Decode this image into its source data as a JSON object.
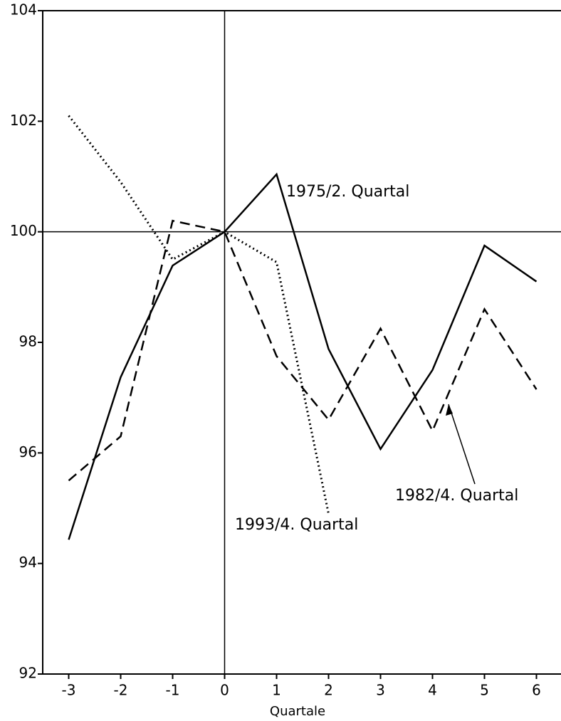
{
  "chart_data": {
    "type": "line",
    "x": [
      -3,
      -2,
      -1,
      0,
      1,
      2,
      3,
      4,
      5,
      6
    ],
    "series": [
      {
        "name": "1975/2. Quartal",
        "color": "#000000",
        "line_style": "solid",
        "values": [
          94.43,
          97.37,
          99.39,
          100,
          101.04,
          97.88,
          96.07,
          97.5,
          99.75,
          99.1
        ]
      },
      {
        "name": "1982/4. Quartal",
        "color": "#000000",
        "line_style": "dashed",
        "values": [
          95.5,
          96.3,
          100.2,
          100,
          97.75,
          96.6,
          98.25,
          96.4,
          98.6,
          97.15
        ]
      },
      {
        "name": "1993/4. Quartal",
        "color": "#000000",
        "line_style": "dotted",
        "values": [
          102.1,
          100.9,
          99.5,
          100,
          99.45,
          94.9,
          null,
          null,
          null,
          null
        ]
      }
    ],
    "xlabel": "Quartale",
    "xlim": [
      -3.5,
      6.5
    ],
    "xticks": [
      -3,
      -2,
      -1,
      0,
      1,
      2,
      3,
      4,
      5,
      6
    ],
    "ylim": [
      92,
      104
    ],
    "yticks": [
      92,
      94,
      96,
      98,
      100,
      102,
      104
    ]
  }
}
